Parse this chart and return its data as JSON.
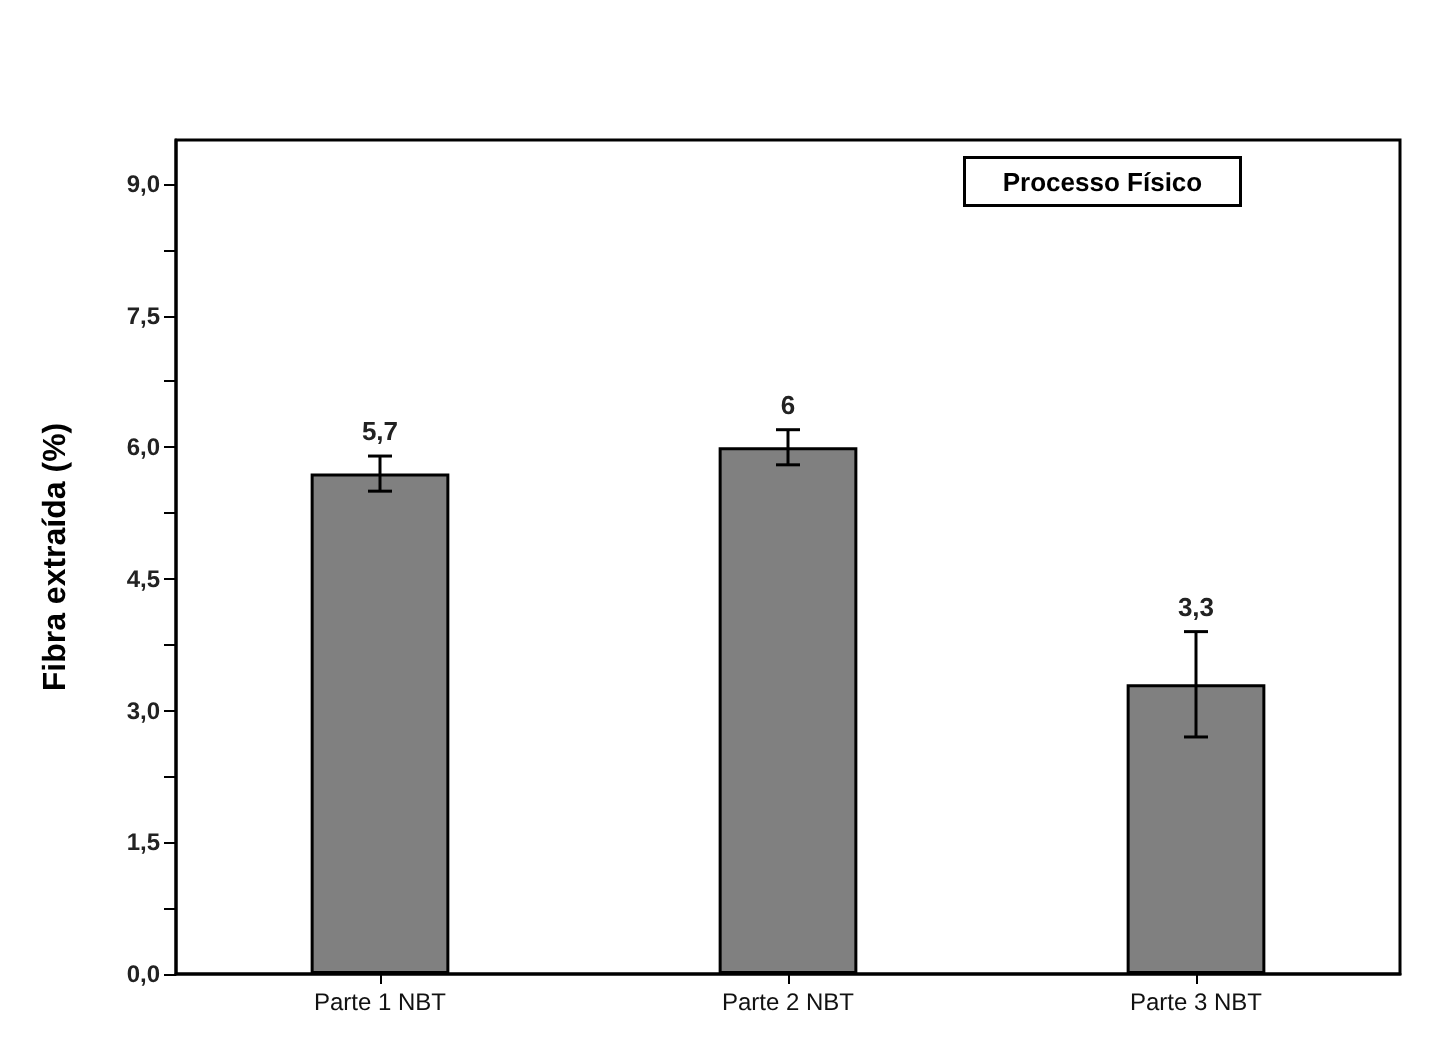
{
  "chart_data": {
    "type": "bar",
    "ylabel": "Fibra extraída (%)",
    "categories": [
      "Parte 1 NBT",
      "Parte 2 NBT",
      "Parte 3 NBT"
    ],
    "values": [
      5.7,
      6.0,
      3.3
    ],
    "errors": [
      0.2,
      0.2,
      0.6
    ],
    "color": "#808080",
    "value_labels": [
      "5,7",
      "6",
      "3,3"
    ],
    "ylim": [
      0,
      9.5
    ],
    "yticks": [
      {
        "value": 0,
        "label": "0,0"
      },
      {
        "value": 0.75,
        "label": null
      },
      {
        "value": 1.5,
        "label": "1,5"
      },
      {
        "value": 2.25,
        "label": null
      },
      {
        "value": 3,
        "label": "3,0"
      },
      {
        "value": 3.75,
        "label": null
      },
      {
        "value": 4.5,
        "label": "4,5"
      },
      {
        "value": 5.25,
        "label": null
      },
      {
        "value": 6,
        "label": "6,0"
      },
      {
        "value": 6.75,
        "label": null
      },
      {
        "value": 7.5,
        "label": "7,5"
      },
      {
        "value": 8.25,
        "label": null
      },
      {
        "value": 9,
        "label": "9,0"
      }
    ],
    "annotations": [
      "Processo Físico"
    ],
    "grid": false
  }
}
